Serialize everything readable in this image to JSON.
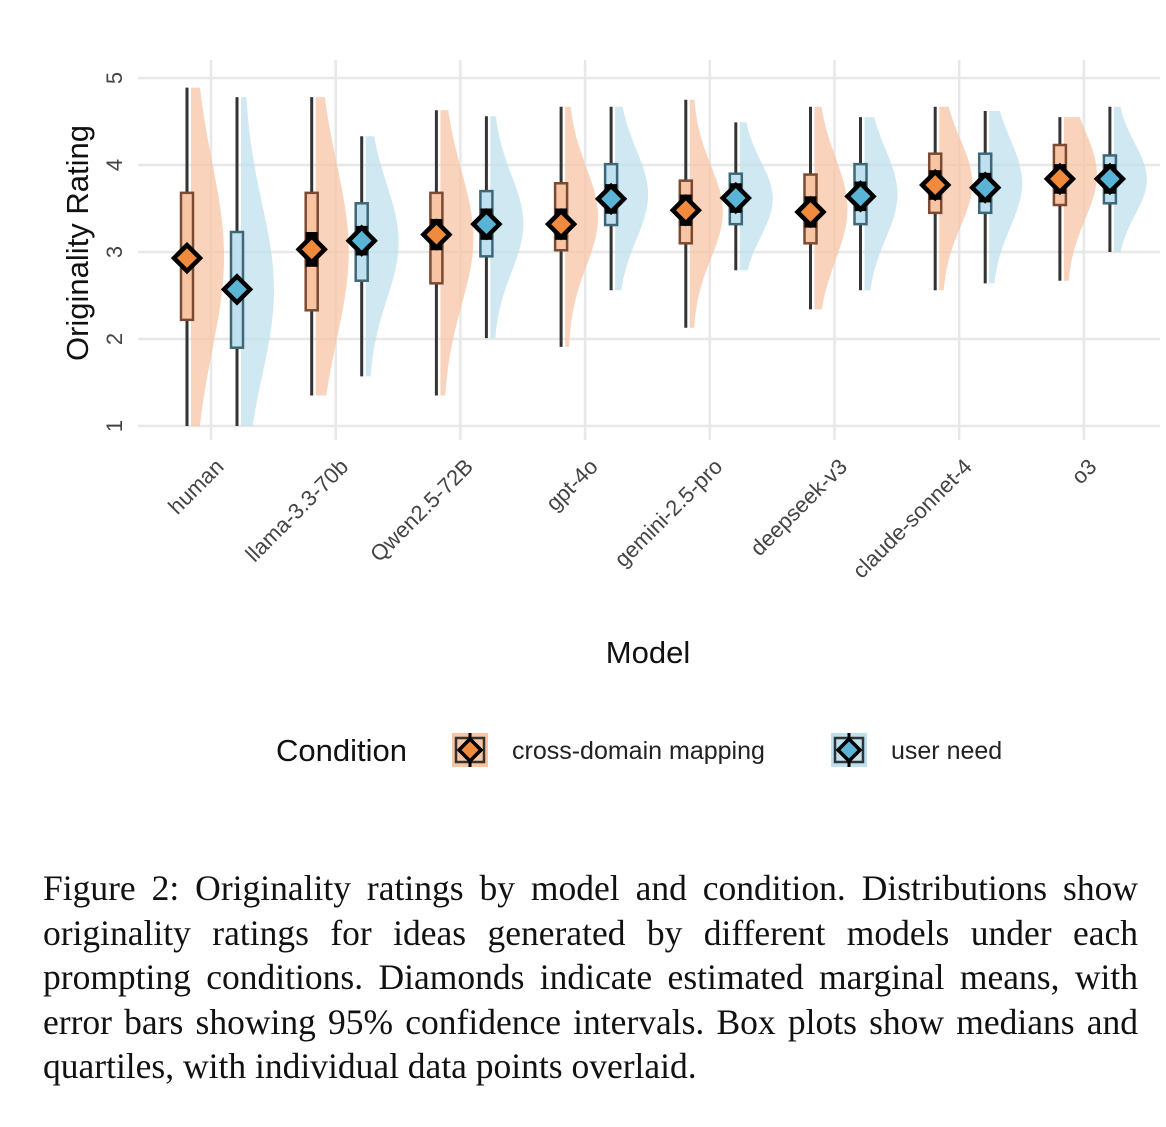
{
  "chart_data": {
    "type": "box",
    "xlabel": "Model",
    "ylabel": "Originality Rating",
    "ylim": [
      1,
      5
    ],
    "yticks": [
      1,
      2,
      3,
      4,
      5
    ],
    "grid": true,
    "legend": {
      "title": "Condition",
      "placement": "bottom"
    },
    "categories": [
      "human",
      "llama-3.3-70b",
      "Qwen2.5-72B",
      "gpt-4o",
      "gemini-2.5-pro",
      "deepseek-v3",
      "claude-sonnet-4",
      "o3"
    ],
    "series": [
      {
        "name": "cross-domain mapping",
        "color": "#f08a3c",
        "fill": "#f7c4a4",
        "mean": [
          2.93,
          3.03,
          3.2,
          3.32,
          3.48,
          3.46,
          3.77,
          3.84
        ],
        "ci": [
          [
            2.83,
            3.03
          ],
          [
            2.83,
            3.23
          ],
          [
            3.02,
            3.38
          ],
          [
            3.14,
            3.5
          ],
          [
            3.3,
            3.66
          ],
          [
            3.28,
            3.64
          ],
          [
            3.6,
            3.94
          ],
          [
            3.67,
            4.01
          ]
        ],
        "q1": [
          2.22,
          2.33,
          2.64,
          3.02,
          3.1,
          3.1,
          3.45,
          3.54
        ],
        "q3": [
          3.68,
          3.68,
          3.68,
          3.79,
          3.82,
          3.89,
          4.13,
          4.23
        ],
        "min": [
          1.0,
          1.35,
          1.35,
          1.91,
          2.13,
          2.34,
          2.56,
          2.67
        ],
        "max": [
          4.89,
          4.78,
          4.63,
          4.67,
          4.75,
          4.67,
          4.67,
          4.55
        ]
      },
      {
        "name": "user need",
        "color": "#5ab4d6",
        "fill": "#bfe0ee",
        "mean": [
          2.57,
          3.13,
          3.32,
          3.61,
          3.62,
          3.64,
          3.74,
          3.84
        ],
        "ci": [
          [
            2.47,
            2.67
          ],
          [
            2.96,
            3.3
          ],
          [
            3.14,
            3.5
          ],
          [
            3.44,
            3.78
          ],
          [
            3.45,
            3.79
          ],
          [
            3.47,
            3.81
          ],
          [
            3.57,
            3.91
          ],
          [
            3.67,
            4.01
          ]
        ],
        "q1": [
          1.9,
          2.67,
          2.95,
          3.31,
          3.32,
          3.32,
          3.45,
          3.56
        ],
        "q3": [
          3.23,
          3.56,
          3.7,
          4.01,
          3.9,
          4.01,
          4.13,
          4.11
        ],
        "min": [
          1.0,
          1.57,
          2.01,
          2.56,
          2.79,
          2.56,
          2.64,
          3.0
        ],
        "max": [
          4.78,
          4.33,
          4.56,
          4.67,
          4.49,
          4.55,
          4.62,
          4.67
        ]
      }
    ]
  },
  "caption": "Figure 2: Originality ratings by model and condition. Distributions show originality ratings for ideas generated by different models under each prompting conditions. Diamonds indicate estimated marginal means, with error bars showing 95% confidence intervals. Box plots show medians and quartiles, with individual data points overlaid."
}
